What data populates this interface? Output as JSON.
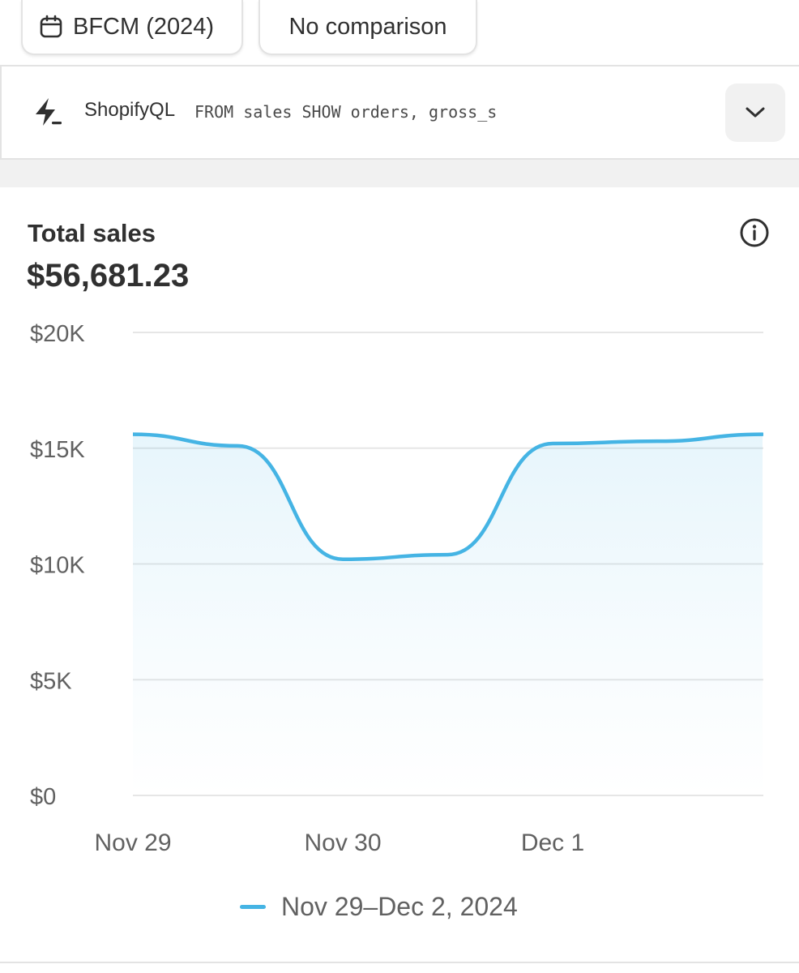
{
  "filters": {
    "date_range": {
      "label": "BFCM (2024)",
      "icon": "calendar-icon"
    },
    "comparison": {
      "label": "No comparison"
    }
  },
  "shopifyql": {
    "icon": "lightning-icon",
    "label": "ShopifyQL",
    "query": "FROM sales SHOW orders, gross_s",
    "toggle_icon": "chevron-down-icon"
  },
  "card": {
    "title": "Total sales",
    "value": "$56,681.23",
    "info_icon": "info-icon"
  },
  "colors": {
    "series": "#45b4e4",
    "grid": "#e6e6e6",
    "text": "#303030",
    "muted": "#616161"
  },
  "chart_data": {
    "type": "area",
    "title": "Total sales",
    "x": [
      "Nov 29 00:00",
      "Nov 29 12:00",
      "Nov 30 00:00",
      "Nov 30 12:00",
      "Dec 1 00:00",
      "Dec 1 12:00",
      "Dec 2 00:00"
    ],
    "x_ticks": [
      {
        "label": "Nov 29",
        "index": 0
      },
      {
        "label": "Nov 30",
        "index": 2
      },
      {
        "label": "Dec 1",
        "index": 4
      }
    ],
    "series": [
      {
        "name": "Nov 29–Dec 2, 2024",
        "values": [
          15600,
          15100,
          10200,
          10400,
          15200,
          15300,
          15600
        ]
      }
    ],
    "y_ticks": [
      {
        "label": "$20K",
        "value": 20000
      },
      {
        "label": "$15K",
        "value": 15000
      },
      {
        "label": "$10K",
        "value": 10000
      },
      {
        "label": "$5K",
        "value": 5000
      },
      {
        "label": "$0",
        "value": 0
      }
    ],
    "ylim": [
      0,
      20000
    ],
    "grid": true,
    "legend": "bottom-center"
  }
}
